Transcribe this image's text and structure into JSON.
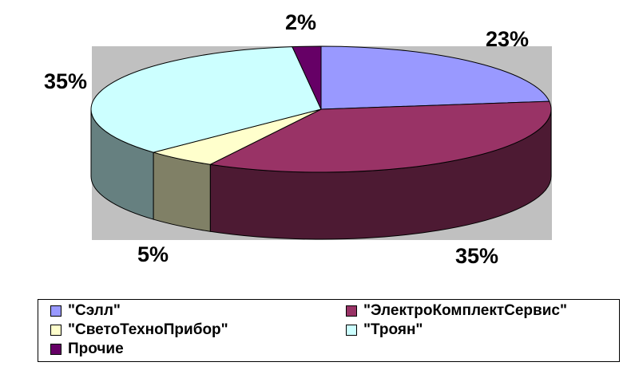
{
  "chart_data": {
    "type": "pie",
    "title": "",
    "series": [
      {
        "name": "\"Сэлл\"",
        "value": 23,
        "label": "23%",
        "color": "#9999ff",
        "side_color": "#4c4c80"
      },
      {
        "name": "\"ЭлектроКомплектСервис\"",
        "value": 35,
        "label": "35%",
        "color": "#993366",
        "side_color": "#4d1a33"
      },
      {
        "name": "\"СветоТехноПрибор\"",
        "value": 5,
        "label": "5%",
        "color": "#ffffcc",
        "side_color": "#808066"
      },
      {
        "name": "\"Троян\"",
        "value": 35,
        "label": "35%",
        "color": "#ccffff",
        "side_color": "#668080"
      },
      {
        "name": "Прочие",
        "value": 2,
        "label": "2%",
        "color": "#660066",
        "side_color": "#330033"
      }
    ],
    "plot_background": "#c0c0c0",
    "legend_position": "bottom"
  }
}
